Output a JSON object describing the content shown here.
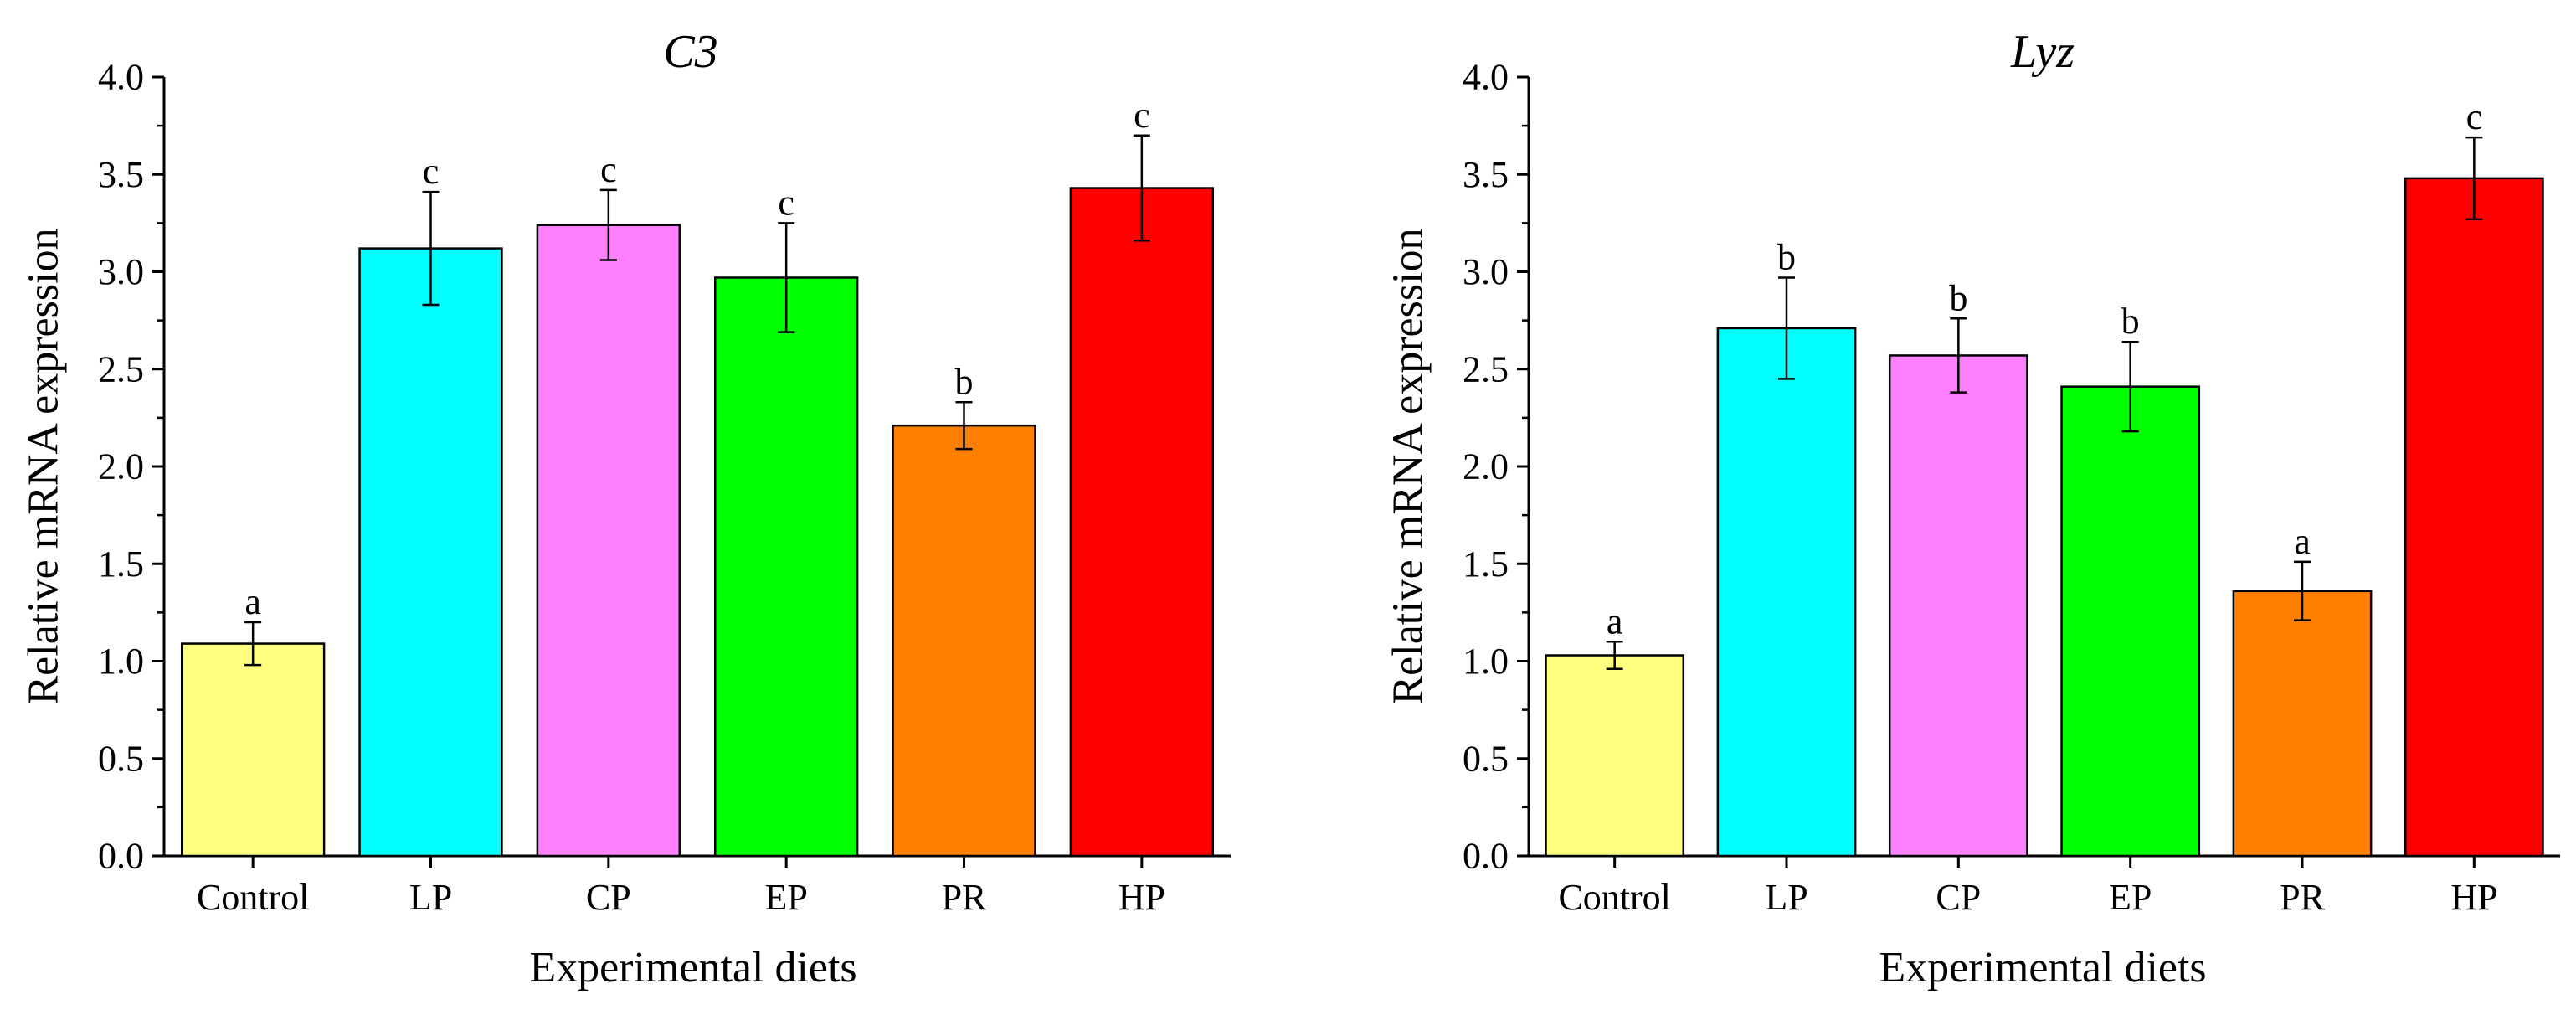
{
  "chart_data": [
    {
      "type": "bar",
      "title": "C3",
      "xlabel": "Experimental diets",
      "ylabel": "Relative mRNA expression",
      "ylim": [
        0,
        4.0
      ],
      "yticks": [
        "0.0",
        "0.5",
        "1.0",
        "1.5",
        "2.0",
        "2.5",
        "3.0",
        "3.5",
        "4.0"
      ],
      "categories": [
        "Control",
        "LP",
        "CP",
        "EP",
        "PR",
        "HP"
      ],
      "values": [
        1.09,
        3.12,
        3.24,
        2.97,
        2.21,
        3.43
      ],
      "errors": [
        0.11,
        0.29,
        0.18,
        0.28,
        0.12,
        0.27
      ],
      "significance": [
        "a",
        "c",
        "c",
        "c",
        "b",
        "c"
      ],
      "colors": [
        "#FFFF80",
        "#00FFFF",
        "#FF80FF",
        "#00FF00",
        "#FF8000",
        "#FF0000"
      ]
    },
    {
      "type": "bar",
      "title": "Lyz",
      "xlabel": "Experimental diets",
      "ylabel": "Relative mRNA expression",
      "ylim": [
        0,
        4.0
      ],
      "yticks": [
        "0.0",
        "0.5",
        "1.0",
        "1.5",
        "2.0",
        "2.5",
        "3.0",
        "3.5",
        "4.0"
      ],
      "categories": [
        "Control",
        "LP",
        "CP",
        "EP",
        "PR",
        "HP"
      ],
      "values": [
        1.03,
        2.71,
        2.57,
        2.41,
        1.36,
        3.48
      ],
      "errors": [
        0.07,
        0.26,
        0.19,
        0.23,
        0.15,
        0.21
      ],
      "significance": [
        "a",
        "b",
        "b",
        "b",
        "a",
        "c"
      ],
      "colors": [
        "#FFFF80",
        "#00FFFF",
        "#FF80FF",
        "#00FF00",
        "#FF8000",
        "#FF0000"
      ]
    }
  ]
}
